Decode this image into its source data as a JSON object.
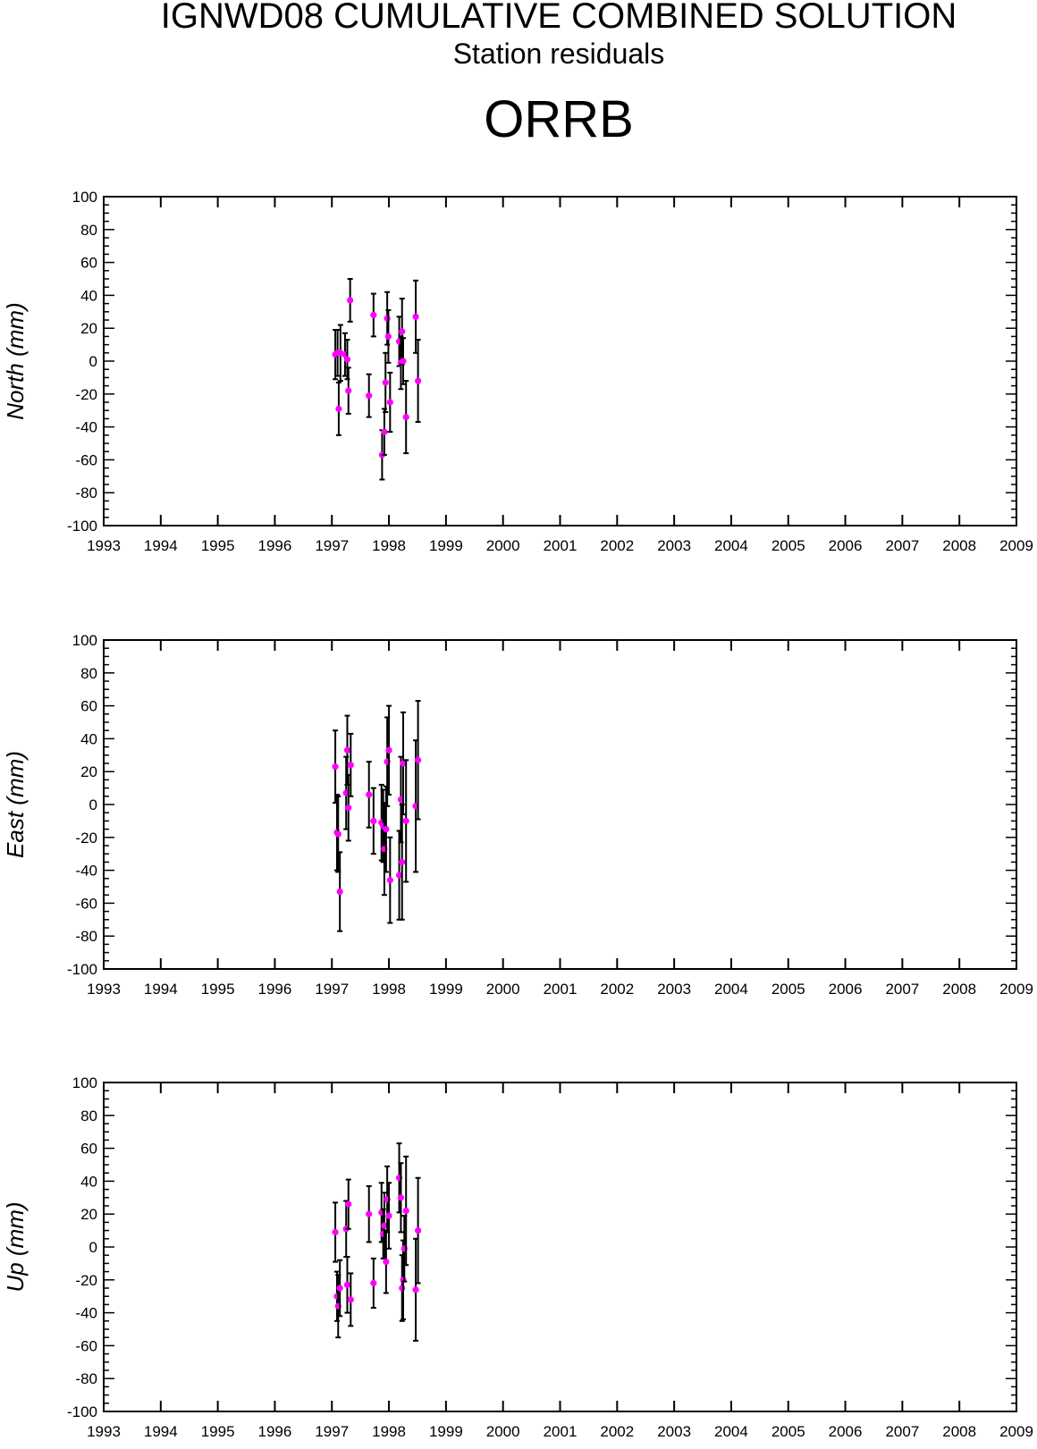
{
  "header": {
    "title": "IGNWD08 CUMULATIVE COMBINED SOLUTION",
    "subtitle": "Station residuals",
    "station": "ORRB"
  },
  "colors": {
    "point": "#ff00ff",
    "errorbar": "#000000",
    "axis": "#000000"
  },
  "chart_data": [
    {
      "type": "scatter",
      "ylabel": "North (mm)",
      "xlim": [
        1993,
        2009
      ],
      "ylim": [
        -100,
        100
      ],
      "xticks": [
        "1993",
        "1994",
        "1995",
        "1996",
        "1997",
        "1998",
        "1999",
        "2000",
        "2001",
        "2002",
        "2003",
        "2004",
        "2005",
        "2006",
        "2007",
        "2008",
        "2009"
      ],
      "yticks": [
        "100",
        "80",
        "60",
        "40",
        "20",
        "0",
        "-20",
        "-40",
        "-60",
        "-80",
        "-100"
      ],
      "points": [
        {
          "x": 1997.06,
          "y": 4,
          "err": 15
        },
        {
          "x": 1997.1,
          "y": 5,
          "err": 14
        },
        {
          "x": 1997.12,
          "y": -29,
          "err": 16
        },
        {
          "x": 1997.15,
          "y": 5,
          "err": 17
        },
        {
          "x": 1997.23,
          "y": 4,
          "err": 13
        },
        {
          "x": 1997.27,
          "y": 1,
          "err": 12
        },
        {
          "x": 1997.29,
          "y": -18,
          "err": 14
        },
        {
          "x": 1997.32,
          "y": 37,
          "err": 13
        },
        {
          "x": 1997.65,
          "y": -21,
          "err": 13
        },
        {
          "x": 1997.73,
          "y": 28,
          "err": 13
        },
        {
          "x": 1997.88,
          "y": -57,
          "err": 15
        },
        {
          "x": 1997.92,
          "y": -43,
          "err": 14
        },
        {
          "x": 1997.94,
          "y": -13,
          "err": 18
        },
        {
          "x": 1997.97,
          "y": 26,
          "err": 16
        },
        {
          "x": 1997.99,
          "y": 15,
          "err": 16
        },
        {
          "x": 1998.02,
          "y": -25,
          "err": 18
        },
        {
          "x": 1998.18,
          "y": 12,
          "err": 15
        },
        {
          "x": 1998.21,
          "y": -1,
          "err": 16
        },
        {
          "x": 1998.23,
          "y": 18,
          "err": 20
        },
        {
          "x": 1998.25,
          "y": 0,
          "err": 14
        },
        {
          "x": 1998.3,
          "y": -34,
          "err": 22
        },
        {
          "x": 1998.47,
          "y": 27,
          "err": 22
        },
        {
          "x": 1998.51,
          "y": -12,
          "err": 25
        }
      ]
    },
    {
      "type": "scatter",
      "ylabel": "East (mm)",
      "xlim": [
        1993,
        2009
      ],
      "ylim": [
        -100,
        100
      ],
      "xticks": [
        "1993",
        "1994",
        "1995",
        "1996",
        "1997",
        "1998",
        "1999",
        "2000",
        "2001",
        "2002",
        "2003",
        "2004",
        "2005",
        "2006",
        "2007",
        "2008",
        "2009"
      ],
      "yticks": [
        "100",
        "80",
        "60",
        "40",
        "20",
        "0",
        "-20",
        "-40",
        "-60",
        "-80",
        "-100"
      ],
      "points": [
        {
          "x": 1997.06,
          "y": 23,
          "err": 22
        },
        {
          "x": 1997.09,
          "y": -17,
          "err": 23
        },
        {
          "x": 1997.11,
          "y": -18,
          "err": 23
        },
        {
          "x": 1997.14,
          "y": -53,
          "err": 24
        },
        {
          "x": 1997.25,
          "y": 7,
          "err": 22
        },
        {
          "x": 1997.27,
          "y": 33,
          "err": 21
        },
        {
          "x": 1997.29,
          "y": -2,
          "err": 20
        },
        {
          "x": 1997.33,
          "y": 24,
          "err": 19
        },
        {
          "x": 1997.65,
          "y": 6,
          "err": 20
        },
        {
          "x": 1997.73,
          "y": -10,
          "err": 20
        },
        {
          "x": 1997.87,
          "y": -11,
          "err": 23
        },
        {
          "x": 1997.9,
          "y": -13,
          "err": 22
        },
        {
          "x": 1997.92,
          "y": -27,
          "err": 28
        },
        {
          "x": 1997.95,
          "y": -15,
          "err": 26
        },
        {
          "x": 1997.97,
          "y": 26,
          "err": 27
        },
        {
          "x": 1998.0,
          "y": 33,
          "err": 27
        },
        {
          "x": 1998.02,
          "y": -46,
          "err": 26
        },
        {
          "x": 1998.18,
          "y": -43,
          "err": 27
        },
        {
          "x": 1998.21,
          "y": 3,
          "err": 26
        },
        {
          "x": 1998.23,
          "y": -35,
          "err": 35
        },
        {
          "x": 1998.25,
          "y": 25,
          "err": 31
        },
        {
          "x": 1998.3,
          "y": -10,
          "err": 37
        },
        {
          "x": 1998.47,
          "y": -1,
          "err": 40
        },
        {
          "x": 1998.51,
          "y": 27,
          "err": 36
        }
      ]
    },
    {
      "type": "scatter",
      "ylabel": "Up (mm)",
      "xlim": [
        1993,
        2009
      ],
      "ylim": [
        -100,
        100
      ],
      "xticks": [
        "1993",
        "1994",
        "1995",
        "1996",
        "1997",
        "1998",
        "1999",
        "2000",
        "2001",
        "2002",
        "2003",
        "2004",
        "2005",
        "2006",
        "2007",
        "2008",
        "2009"
      ],
      "yticks": [
        "100",
        "80",
        "60",
        "40",
        "20",
        "0",
        "-20",
        "-40",
        "-60",
        "-80",
        "-100"
      ],
      "points": [
        {
          "x": 1997.06,
          "y": 9,
          "err": 18
        },
        {
          "x": 1997.09,
          "y": -30,
          "err": 15
        },
        {
          "x": 1997.11,
          "y": -36,
          "err": 19
        },
        {
          "x": 1997.14,
          "y": -25,
          "err": 17
        },
        {
          "x": 1997.25,
          "y": 11,
          "err": 17
        },
        {
          "x": 1997.27,
          "y": -23,
          "err": 17
        },
        {
          "x": 1997.29,
          "y": 26,
          "err": 15
        },
        {
          "x": 1997.33,
          "y": -32,
          "err": 16
        },
        {
          "x": 1997.65,
          "y": 20,
          "err": 17
        },
        {
          "x": 1997.73,
          "y": -22,
          "err": 15
        },
        {
          "x": 1997.87,
          "y": 21,
          "err": 18
        },
        {
          "x": 1997.9,
          "y": 8,
          "err": 15
        },
        {
          "x": 1997.92,
          "y": 13,
          "err": 20
        },
        {
          "x": 1997.95,
          "y": -9,
          "err": 19
        },
        {
          "x": 1997.97,
          "y": 29,
          "err": 20
        },
        {
          "x": 1998.0,
          "y": 19,
          "err": 20
        },
        {
          "x": 1998.18,
          "y": 42,
          "err": 21
        },
        {
          "x": 1998.21,
          "y": 30,
          "err": 21
        },
        {
          "x": 1998.23,
          "y": -25,
          "err": 20
        },
        {
          "x": 1998.25,
          "y": -20,
          "err": 24
        },
        {
          "x": 1998.27,
          "y": -1,
          "err": 20
        },
        {
          "x": 1998.3,
          "y": 22,
          "err": 33
        },
        {
          "x": 1998.47,
          "y": -26,
          "err": 31
        },
        {
          "x": 1998.51,
          "y": 10,
          "err": 32
        }
      ]
    }
  ]
}
